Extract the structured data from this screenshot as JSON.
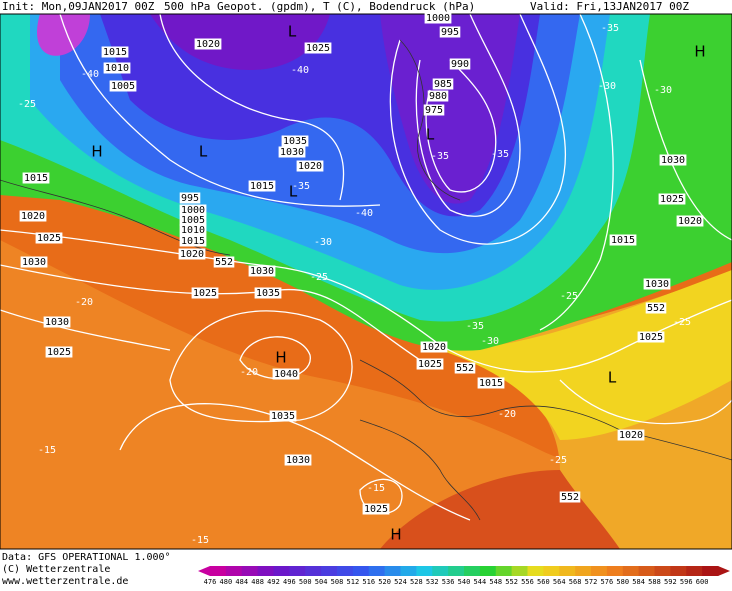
{
  "header": {
    "init": "Init: Mon,09JAN2017 00Z",
    "title": "500 hPa Geopot. (gpdm), T (C), Bodendruck (hPa)",
    "valid": "Valid: Fri,13JAN2017 00Z"
  },
  "map": {
    "labels": [
      "1015",
      "1020",
      "1025",
      "1010",
      "-40",
      "1005",
      "1000",
      "995",
      "990",
      "985",
      "980",
      "975",
      "-40",
      "-35",
      "-30",
      "-25",
      "1035",
      "1030",
      "1020",
      "-35",
      "-35",
      "1015",
      "1015",
      "-35",
      "995",
      "1000",
      "1005",
      "1010",
      "1015",
      "1020",
      "-40",
      "1020",
      "1025",
      "-30",
      "552",
      "1030",
      "-25",
      "1030",
      "1025",
      "1035",
      "-20",
      "1030",
      "-35",
      "-30",
      "-25",
      "1030",
      "552",
      "-25",
      "1025",
      "1020",
      "1025",
      "552",
      "1015",
      "1025",
      "1040",
      "-20",
      "-20",
      "1035",
      "1020",
      "-15",
      "1030",
      "-25",
      "-15",
      "552",
      "1025",
      "-15",
      "1030",
      "1025",
      "1020",
      "1015",
      "-30",
      "H",
      "L",
      "L",
      "L",
      "L",
      "H",
      "H",
      "L",
      "H"
    ]
  },
  "footer": {
    "data": "Data: GFS OPERATIONAL 1.000°",
    "copyright": "(C) Wetterzentrale",
    "url": "www.wetterzentrale.de"
  },
  "legend": {
    "levels": [
      476,
      480,
      484,
      488,
      492,
      496,
      500,
      504,
      508,
      512,
      516,
      520,
      524,
      528,
      532,
      536,
      540,
      544,
      548,
      552,
      556,
      560,
      564,
      568,
      572,
      576,
      580,
      584,
      588,
      592,
      596,
      600
    ]
  }
}
